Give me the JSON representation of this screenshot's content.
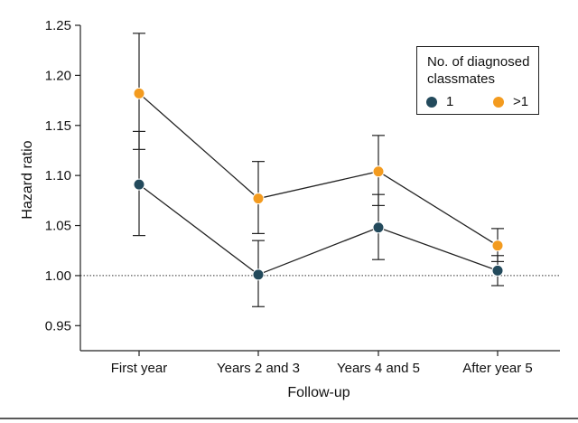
{
  "chart_data": {
    "type": "line",
    "title": "",
    "xlabel": "Follow-up",
    "ylabel": "Hazard ratio",
    "categories": [
      "First year",
      "Years 2 and 3",
      "Years 4 and 5",
      "After year 5"
    ],
    "ylim": [
      0.925,
      1.25
    ],
    "yticks": [
      "0.95",
      "1.00",
      "1.05",
      "1.10",
      "1.15",
      "1.20",
      "1.25"
    ],
    "reference_line": 1.0,
    "grid": false,
    "legend": {
      "title": "No. of diagnosed classmates",
      "placement": "top-right"
    },
    "series": [
      {
        "name": "1",
        "color": "#234a5c",
        "values": [
          1.091,
          1.001,
          1.048,
          1.005
        ],
        "ci_low": [
          1.04,
          0.969,
          1.016,
          0.99
        ],
        "ci_high": [
          1.144,
          1.035,
          1.081,
          1.02
        ]
      },
      {
        "name": ">1",
        "color": "#f39b1f",
        "values": [
          1.182,
          1.077,
          1.104,
          1.03
        ],
        "ci_low": [
          1.126,
          1.042,
          1.07,
          1.014
        ],
        "ci_high": [
          1.242,
          1.114,
          1.14,
          1.047
        ]
      }
    ]
  }
}
